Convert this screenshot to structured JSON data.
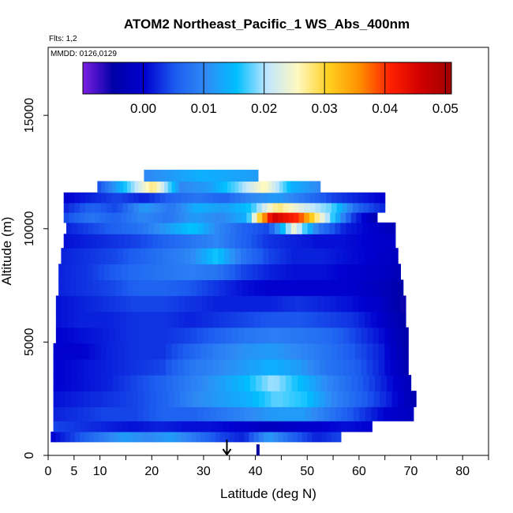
{
  "chart_data": {
    "type": "heatmap",
    "title": "ATOM2 Northeast_Pacific_1 WS_Abs_400nm",
    "flights_note": "Flts: 1,2",
    "dates_note": "MMDD: 0126,0129",
    "xlabel": "Latitude (deg N)",
    "ylabel": "Altitude (m)",
    "xlim": [
      0,
      85
    ],
    "ylim": [
      0,
      18000
    ],
    "x_ticks": [
      0,
      5,
      10,
      20,
      30,
      40,
      50,
      60,
      70,
      80
    ],
    "x_tick_labels": [
      "0",
      "5",
      "10",
      "20",
      "30",
      "40",
      "50",
      "60",
      "70",
      "80"
    ],
    "y_ticks": [
      0,
      5000,
      10000,
      15000
    ],
    "y_tick_labels": [
      "0",
      "5000",
      "10000",
      "15000"
    ],
    "colorbar": {
      "range": [
        -0.01,
        0.051
      ],
      "ticks": [
        0.0,
        0.01,
        0.02,
        0.03,
        0.04,
        0.05
      ],
      "tick_labels": [
        "0.00",
        "0.01",
        "0.02",
        "0.03",
        "0.04",
        "0.05"
      ],
      "colors": [
        "#7b1fe0",
        "#0000a8",
        "#0000d0",
        "#1c5cf0",
        "#2f8af5",
        "#00bfff",
        "#bfe6ff",
        "#fff8c0",
        "#ffd020",
        "#ff9000",
        "#ff2000",
        "#d00000",
        "#a00000"
      ]
    },
    "bands": [
      {
        "alt": 850,
        "lat_start": 0.5,
        "lat_end": 56.5,
        "values": [
          0.0,
          0.004,
          0.008,
          0.012,
          0.01,
          0.012,
          0.008,
          0.004,
          0.002,
          0.012,
          0.006,
          0.002,
          0.004
        ]
      },
      {
        "alt": 1250,
        "lat_start": 1.0,
        "lat_end": 62.5,
        "values": [
          0.004,
          0.003,
          0.002,
          0.001,
          0.002,
          0.001,
          0.001,
          0.0,
          -0.002,
          -0.001,
          0.0,
          0.001,
          0.0
        ]
      },
      {
        "alt": 1800,
        "lat_start": 1.0,
        "lat_end": 70.5,
        "values": [
          0.002,
          0.003,
          0.004,
          0.004,
          0.006,
          0.006,
          0.008,
          0.01,
          0.012,
          0.012,
          0.008,
          0.004,
          0.0,
          -0.002
        ]
      },
      {
        "alt": 2500,
        "lat_start": 1.0,
        "lat_end": 71.0,
        "values": [
          0.001,
          0.002,
          0.003,
          0.004,
          0.006,
          0.01,
          0.012,
          0.014,
          0.018,
          0.016,
          0.01,
          0.006,
          0.002,
          -0.004
        ]
      },
      {
        "alt": 3200,
        "lat_start": 1.0,
        "lat_end": 70.0,
        "values": [
          0.0,
          0.001,
          0.002,
          0.004,
          0.006,
          0.009,
          0.012,
          0.015,
          0.02,
          0.015,
          0.01,
          0.006,
          0.002,
          -0.003
        ]
      },
      {
        "alt": 3900,
        "lat_start": 1.0,
        "lat_end": 69.5,
        "values": [
          0.0,
          0.001,
          0.002,
          0.003,
          0.004,
          0.008,
          0.01,
          0.012,
          0.014,
          0.012,
          0.008,
          0.006,
          0.002,
          -0.004
        ]
      },
      {
        "alt": 4600,
        "lat_start": 1.0,
        "lat_end": 69.5,
        "values": [
          0.0,
          0.0,
          0.002,
          0.003,
          0.003,
          0.006,
          0.009,
          0.011,
          0.012,
          0.01,
          0.008,
          0.005,
          0.002,
          -0.005
        ]
      },
      {
        "alt": 5300,
        "lat_start": 1.5,
        "lat_end": 69.5,
        "values": [
          0.0,
          0.001,
          0.002,
          0.003,
          0.003,
          0.004,
          0.006,
          0.008,
          0.009,
          0.008,
          0.007,
          0.004,
          0.001,
          -0.005
        ]
      },
      {
        "alt": 6000,
        "lat_start": 1.5,
        "lat_end": 69.0,
        "values": [
          0.001,
          0.002,
          0.002,
          0.003,
          0.003,
          0.002,
          0.003,
          0.004,
          0.005,
          0.005,
          0.004,
          0.003,
          0.0,
          -0.005
        ]
      },
      {
        "alt": 6700,
        "lat_start": 1.5,
        "lat_end": 69.0,
        "values": [
          0.001,
          0.002,
          0.003,
          0.004,
          0.004,
          0.003,
          0.002,
          0.002,
          0.002,
          0.003,
          0.002,
          0.001,
          -0.001,
          -0.006
        ]
      },
      {
        "alt": 7400,
        "lat_start": 2.0,
        "lat_end": 68.5,
        "values": [
          0.002,
          0.003,
          0.004,
          0.006,
          0.006,
          0.005,
          0.003,
          0.001,
          0.0,
          0.0,
          0.0,
          0.0,
          -0.002,
          -0.005
        ]
      },
      {
        "alt": 8100,
        "lat_start": 2.0,
        "lat_end": 68.0,
        "values": [
          0.002,
          0.003,
          0.005,
          0.007,
          0.008,
          0.009,
          0.008,
          0.004,
          0.002,
          0.001,
          0.001,
          0.0,
          -0.001,
          -0.003
        ]
      },
      {
        "alt": 8800,
        "lat_start": 2.5,
        "lat_end": 67.5,
        "values": [
          0.002,
          0.003,
          0.004,
          0.006,
          0.008,
          0.01,
          0.016,
          0.008,
          0.004,
          0.002,
          0.002,
          0.001,
          0.0,
          -0.002
        ]
      },
      {
        "alt": 9500,
        "lat_start": 3.0,
        "lat_end": 67.0,
        "values": [
          0.001,
          0.002,
          0.003,
          0.004,
          0.006,
          0.008,
          0.01,
          0.006,
          0.003,
          0.002,
          0.001,
          0.001,
          0.0,
          -0.001
        ]
      },
      {
        "alt": 10050,
        "lat_start": 3.5,
        "lat_end": 67.0,
        "values": [
          0.002,
          0.004,
          0.006,
          0.008,
          0.012,
          0.016,
          0.01,
          0.006,
          0.004,
          0.024,
          0.008,
          0.002,
          0.0,
          -0.003
        ]
      },
      {
        "alt": 10500,
        "lat_start": 3.0,
        "lat_end": 63.5,
        "values": [
          0.004,
          0.008,
          0.006,
          0.01,
          0.008,
          0.012,
          0.01,
          0.014,
          0.046,
          0.04,
          0.022,
          0.004,
          -0.004
        ]
      },
      {
        "alt": 10950,
        "lat_start": 3.0,
        "lat_end": 65.0,
        "values": [
          0.002,
          0.006,
          0.004,
          0.012,
          0.008,
          0.014,
          0.012,
          0.016,
          0.028,
          0.022,
          0.018,
          0.006,
          0.002
        ]
      },
      {
        "alt": 11350,
        "lat_start": 3.0,
        "lat_end": 65.0,
        "values": [
          0.0,
          0.002,
          0.004,
          0.002,
          0.006,
          0.008,
          0.006,
          0.01,
          0.012,
          0.008,
          0.004,
          0.002,
          0.0
        ]
      },
      {
        "alt": 11850,
        "lat_start": 9.5,
        "lat_end": 52.5,
        "values": [
          0.004,
          0.016,
          0.028,
          0.01,
          0.012,
          0.018,
          0.026,
          0.014,
          0.01
        ]
      },
      {
        "alt": 12350,
        "lat_start": 18.5,
        "lat_end": 40.5,
        "values": [
          0.01,
          0.012,
          0.014,
          0.013,
          0.012
        ]
      }
    ],
    "markers": [
      {
        "type": "arrow-down",
        "lat": 34.5,
        "alt": 0
      },
      {
        "type": "vertical-tick",
        "lat": 40.5,
        "alt": 0
      }
    ]
  }
}
